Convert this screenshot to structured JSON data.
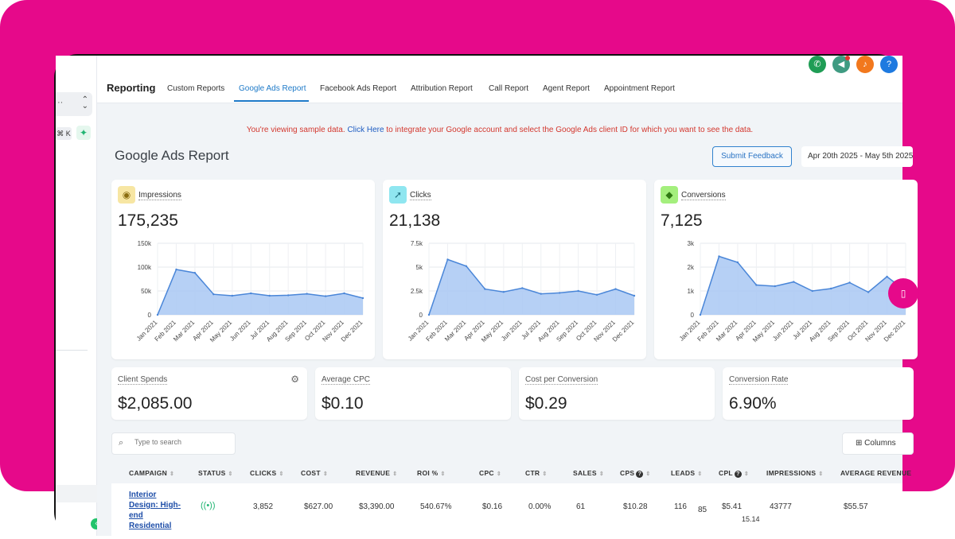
{
  "sidebar": {
    "kbd": "⌘ K",
    "dots": "··"
  },
  "nav": {
    "brand": "Reporting",
    "tabs": [
      {
        "label": "Custom Reports"
      },
      {
        "label": "Google Ads Report"
      },
      {
        "label": "Facebook Ads Report"
      },
      {
        "label": "Attribution Report"
      },
      {
        "label": "Call Report"
      },
      {
        "label": "Agent Report"
      },
      {
        "label": "Appointment Report"
      }
    ],
    "active_tab": "Google Ads Report"
  },
  "header_icons": [
    {
      "name": "phone-icon",
      "color": "#1f9d55"
    },
    {
      "name": "megaphone-icon",
      "color": "#3f9b82"
    },
    {
      "name": "bell-icon",
      "color": "#f2781d"
    },
    {
      "name": "help-icon",
      "color": "#1e7ae0"
    }
  ],
  "banner": {
    "text_before": "You're viewing sample data. ",
    "link": "Click Here",
    "text_after": " to integrate your Google account and select the Google Ads client ID for which you want to see the data."
  },
  "page": {
    "title": "Google Ads Report",
    "feedback_label": "Submit Feedback",
    "date_range": "Apr 20th 2025 - May 5th 2025"
  },
  "metrics": [
    {
      "label": "Impressions",
      "value": "175,235",
      "icon": "eye-icon",
      "icon_bg": "#f7e6a3",
      "icon_color": "#8a6d10"
    },
    {
      "label": "Clicks",
      "value": "21,138",
      "icon": "cursor-click-icon",
      "icon_bg": "#8fe6f0",
      "icon_color": "#1f6f80"
    },
    {
      "label": "Conversions",
      "value": "7,125",
      "icon": "diamond-icon",
      "icon_bg": "#a4ef7d",
      "icon_color": "#2f7a12"
    }
  ],
  "chart_data": [
    {
      "type": "area",
      "categories": [
        "Jan 2021",
        "Feb 2021",
        "Mar 2021",
        "Apr 2021",
        "May 2021",
        "Jun 2021",
        "Jul 2021",
        "Aug 2021",
        "Sep 2021",
        "Oct 2021",
        "Nov 2021",
        "Dec 2021"
      ],
      "values": [
        0,
        95000,
        88000,
        43000,
        40000,
        45000,
        40000,
        41000,
        44000,
        39000,
        45000,
        35000
      ],
      "yticks": [
        "0",
        "50k",
        "100k",
        "150k"
      ],
      "ylim": [
        0,
        150000
      ],
      "grid": true
    },
    {
      "type": "area",
      "categories": [
        "Jan 2021",
        "Feb 2021",
        "Mar 2021",
        "Apr 2021",
        "May 2021",
        "Jun 2021",
        "Jul 2021",
        "Aug 2021",
        "Sep 2021",
        "Oct 2021",
        "Nov 2021",
        "Dec 2021"
      ],
      "values": [
        0,
        5800,
        5100,
        2700,
        2400,
        2800,
        2200,
        2300,
        2500,
        2100,
        2700,
        2000
      ],
      "yticks": [
        "0",
        "2.5k",
        "5k",
        "7.5k"
      ],
      "ylim": [
        0,
        7500
      ],
      "grid": true
    },
    {
      "type": "area",
      "categories": [
        "Jan 2021",
        "Feb 2021",
        "Mar 2021",
        "Apr 2021",
        "May 2021",
        "Jun 2021",
        "Jul 2021",
        "Aug 2021",
        "Sep 2021",
        "Oct 2021",
        "Nov 2021",
        "Dec 2021"
      ],
      "values": [
        0,
        2450,
        2200,
        1250,
        1200,
        1380,
        1000,
        1100,
        1350,
        950,
        1600,
        1000
      ],
      "yticks": [
        "0",
        "1k",
        "2k",
        "3k"
      ],
      "ylim": [
        0,
        3000
      ],
      "grid": true
    }
  ],
  "stats": [
    {
      "label": "Client Spends",
      "value": "$2,085.00"
    },
    {
      "label": "Average CPC",
      "value": "$0.10"
    },
    {
      "label": "Cost per Conversion",
      "value": "$0.29"
    },
    {
      "label": "Conversion Rate",
      "value": "6.90%"
    }
  ],
  "table": {
    "search_placeholder": "Type to search",
    "columns_label": "Columns",
    "headers": [
      "CAMPAIGN",
      "STATUS",
      "CLICKS",
      "COST",
      "REVENUE",
      "ROI %",
      "CPC",
      "CTR",
      "SALES",
      "CPS",
      "LEADS",
      "CPL",
      "IMPRESSIONS",
      "AVERAGE REVENUE"
    ],
    "row": {
      "campaign": "Interior Design: High-end Residential",
      "clicks": "3,852",
      "cost": "$627.00",
      "revenue": "$3,390.00",
      "roi": "540.67%",
      "cpc": "$0.16",
      "ctr": "0.00%",
      "sales": "61",
      "cps": "$10.28",
      "leads": "116",
      "leads_extra": "85",
      "cpl": "$5.41",
      "cpl_sub": "15.14",
      "impressions": "43777",
      "avg_revenue": "$55.57"
    }
  }
}
